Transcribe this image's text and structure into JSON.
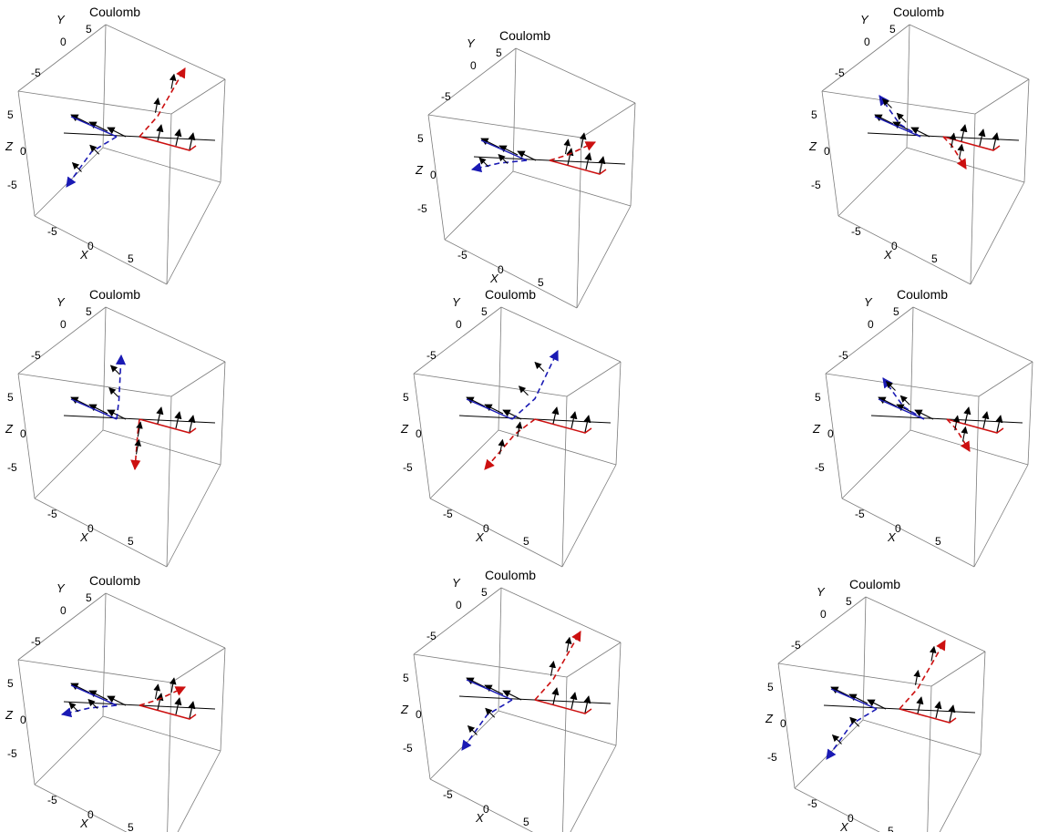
{
  "colors": {
    "background": "#ffffff",
    "box": "#7c7c7c",
    "negative_charge": "#1a1ab4",
    "positive_charge": "#cc1010",
    "force_arrows": "#000000"
  },
  "chart_data": [
    {
      "type": "3d-vector-plot",
      "title": "Coulomb",
      "axis_labels": {
        "x": "X",
        "y": "Y",
        "z": "Z"
      },
      "ticks": {
        "x": [
          "-5",
          "0",
          "5"
        ],
        "y": [
          "-5",
          "0",
          "5"
        ],
        "z": [
          "5",
          "0",
          "-5"
        ]
      },
      "blue_path": "down-left",
      "red_path": "up-right"
    },
    {
      "type": "3d-vector-plot",
      "title": "Coulomb",
      "axis_labels": {
        "x": "X",
        "y": "Y",
        "z": "Z"
      },
      "ticks": {
        "x": [
          "-5",
          "0",
          "5"
        ],
        "y": [
          "-5",
          "0",
          "5"
        ],
        "z": [
          "5",
          "0",
          "-5"
        ]
      },
      "blue_path": "left",
      "red_path": "right"
    },
    {
      "type": "3d-vector-plot",
      "title": "Coulomb",
      "axis_labels": {
        "x": "X",
        "y": "Y",
        "z": "Z"
      },
      "ticks": {
        "x": [
          "-5",
          "0",
          "5"
        ],
        "y": [
          "-5",
          "0",
          "5"
        ],
        "z": [
          "5",
          "0",
          "-5"
        ]
      },
      "blue_path": "up-left",
      "red_path": "down-right"
    },
    {
      "type": "3d-vector-plot",
      "title": "Coulomb",
      "axis_labels": {
        "x": "X",
        "y": "Y",
        "z": "Z"
      },
      "ticks": {
        "x": [
          "-5",
          "0",
          "5"
        ],
        "y": [
          "-5",
          "0",
          "5"
        ],
        "z": [
          "5",
          "0",
          "-5"
        ]
      },
      "blue_path": "up",
      "red_path": "down"
    },
    {
      "type": "3d-vector-plot",
      "title": "Coulomb",
      "axis_labels": {
        "x": "X",
        "y": "Y",
        "z": "Z"
      },
      "ticks": {
        "x": [
          "-5",
          "0",
          "5"
        ],
        "y": [
          "-5",
          "0",
          "5"
        ],
        "z": [
          "5",
          "0",
          "-5"
        ]
      },
      "blue_path": "up-right",
      "red_path": "down-left"
    },
    {
      "type": "3d-vector-plot",
      "title": "Coulomb",
      "axis_labels": {
        "x": "X",
        "y": "Y",
        "z": "Z"
      },
      "ticks": {
        "x": [
          "-5",
          "0",
          "5"
        ],
        "y": [
          "-5",
          "0",
          "5"
        ],
        "z": [
          "5",
          "0",
          "-5"
        ]
      },
      "blue_path": "up-left",
      "red_path": "down-right"
    },
    {
      "type": "3d-vector-plot",
      "title": "Coulomb",
      "axis_labels": {
        "x": "X",
        "y": "Y",
        "z": "Z"
      },
      "ticks": {
        "x": [
          "-5",
          "0",
          "5"
        ],
        "y": [
          "-5",
          "0",
          "5"
        ],
        "z": [
          "5",
          "0",
          "-5"
        ]
      },
      "blue_path": "left",
      "red_path": "right"
    },
    {
      "type": "3d-vector-plot",
      "title": "Coulomb",
      "axis_labels": {
        "x": "X",
        "y": "Y",
        "z": "Z"
      },
      "ticks": {
        "x": [
          "-5",
          "0",
          "5"
        ],
        "y": [
          "-5",
          "0",
          "5"
        ],
        "z": [
          "5",
          "0",
          "-5"
        ]
      },
      "blue_path": "down-left",
      "red_path": "up-right"
    },
    {
      "type": "3d-vector-plot",
      "title": "Coulomb",
      "axis_labels": {
        "x": "X",
        "y": "Y",
        "z": "Z"
      },
      "ticks": {
        "x": [
          "-5",
          "0",
          "5"
        ],
        "y": [
          "-5",
          "0",
          "5"
        ],
        "z": [
          "5",
          "0",
          "-5"
        ]
      },
      "blue_path": "down-left",
      "red_path": "up-right"
    }
  ]
}
